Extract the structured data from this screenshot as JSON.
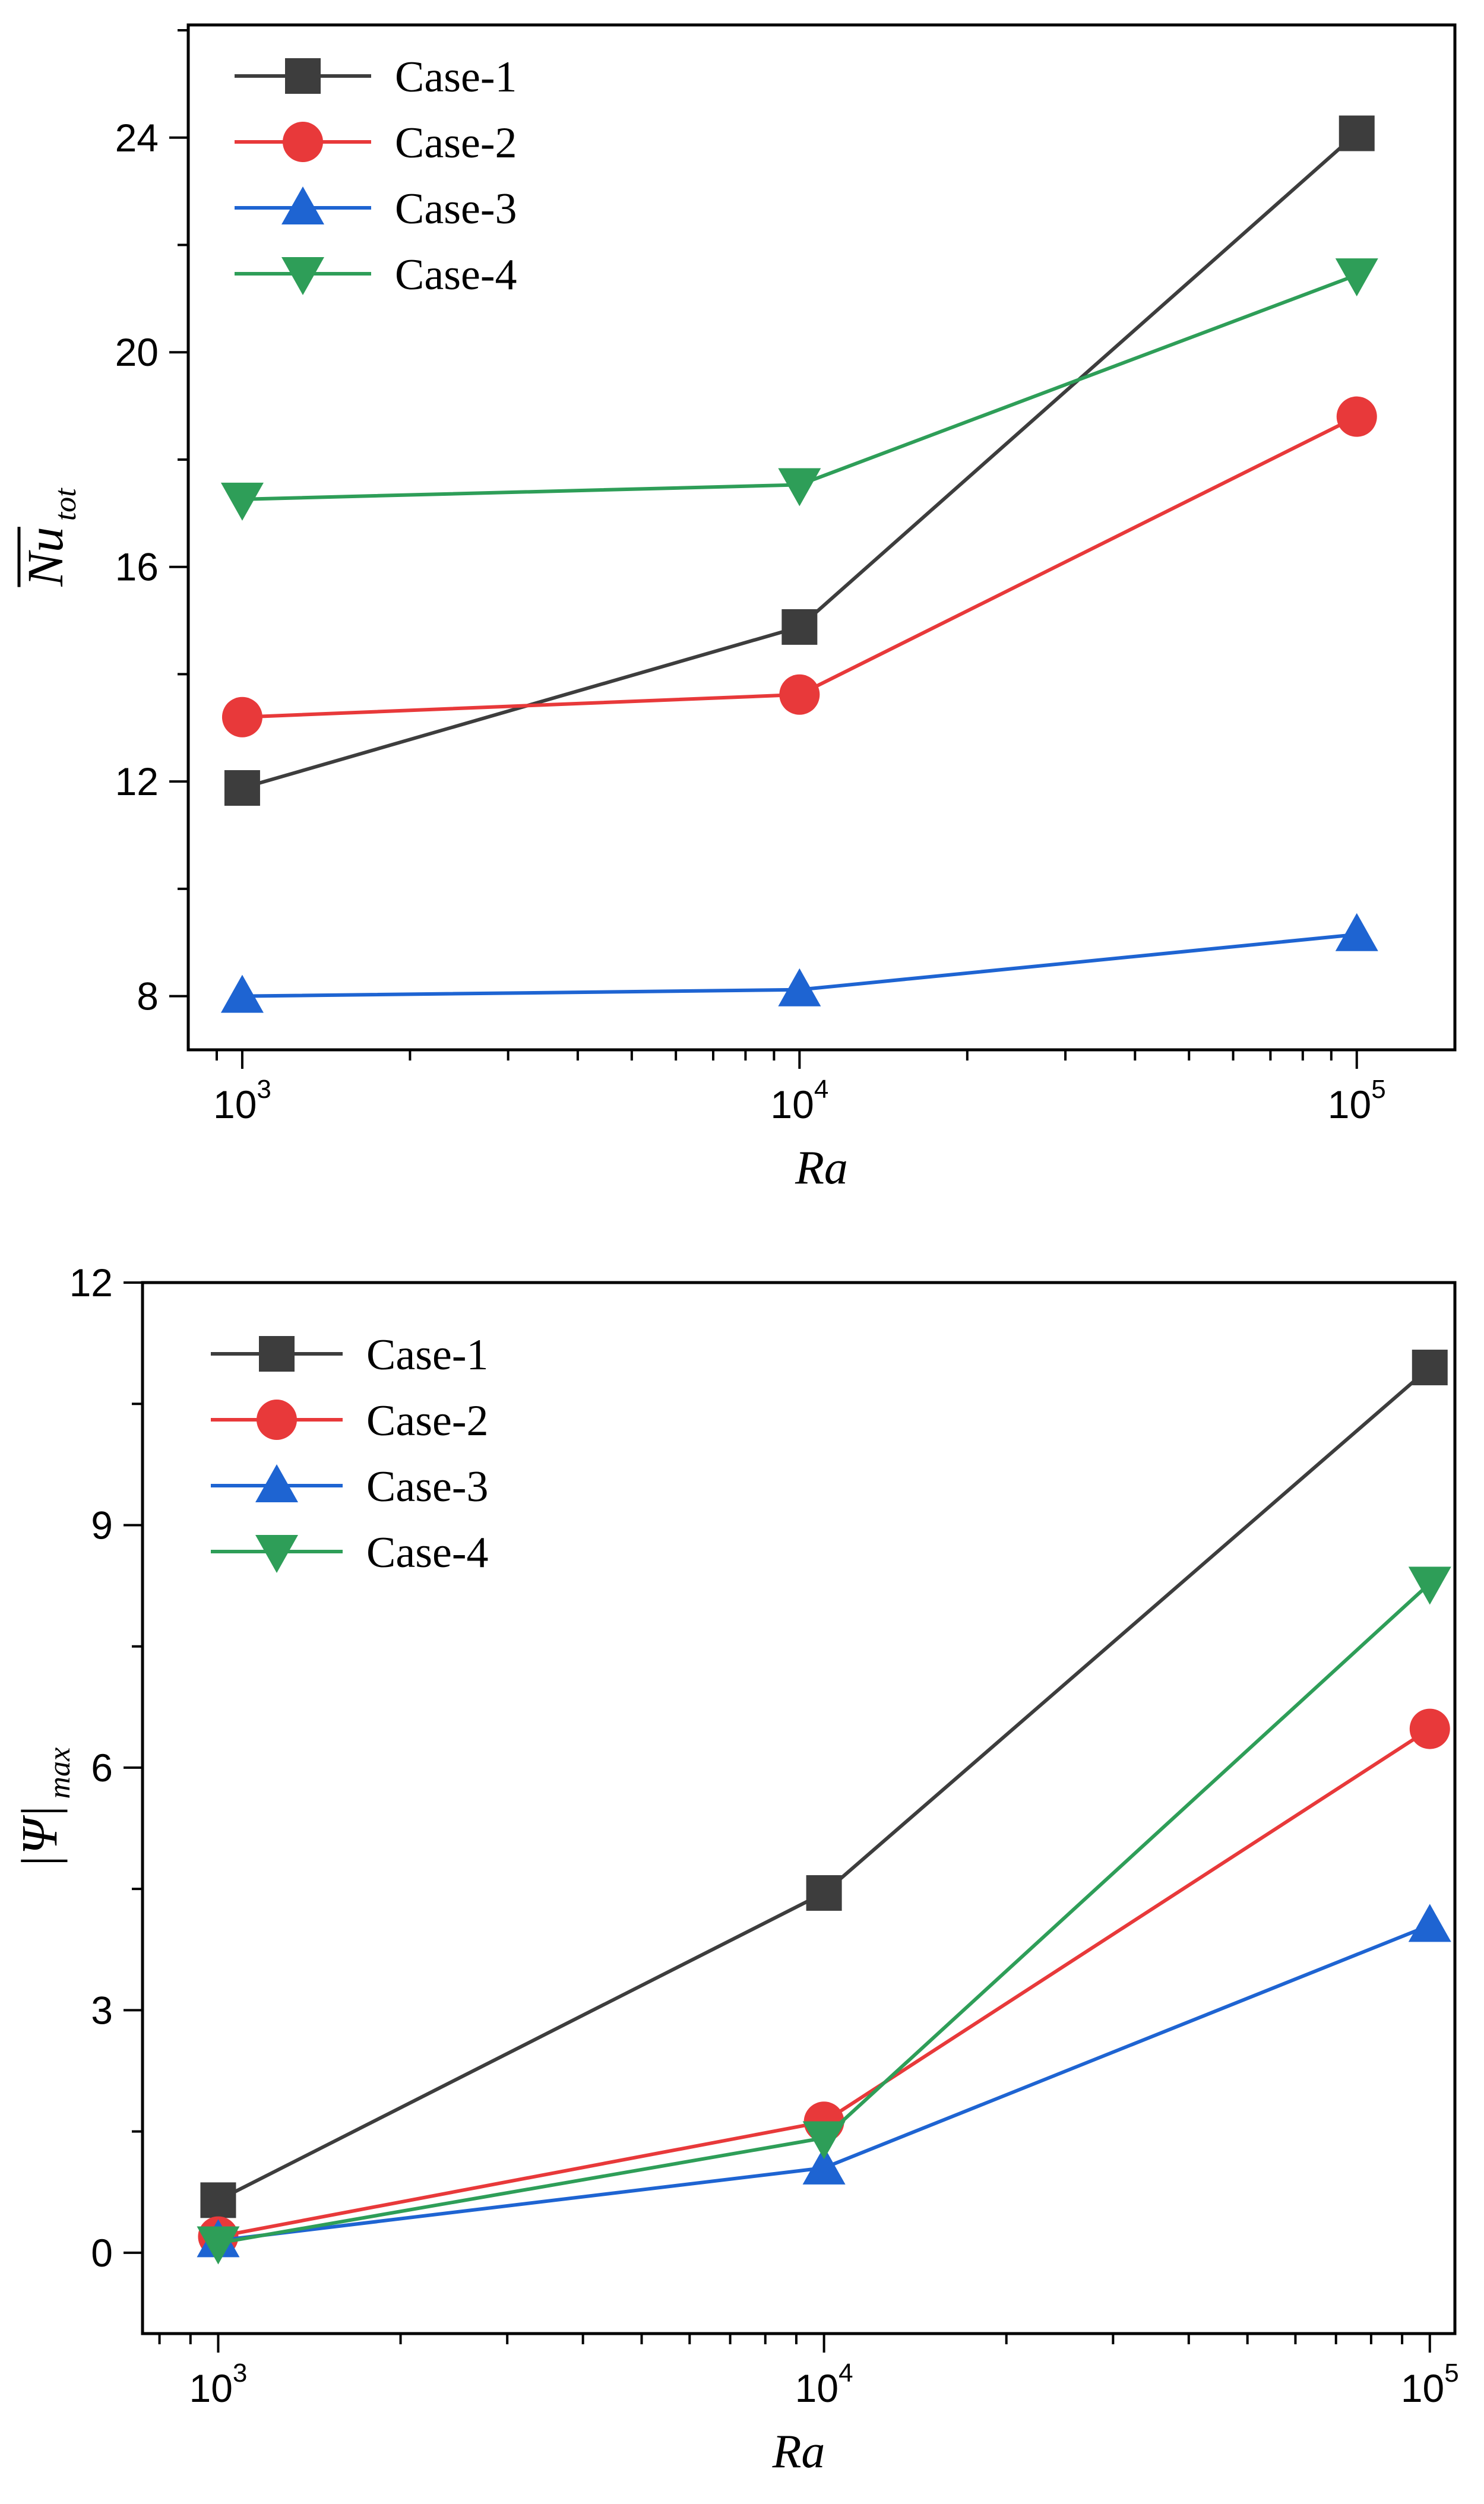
{
  "chart_data": [
    {
      "type": "line",
      "title": "",
      "xlabel": "Ra",
      "ylabel": "Nu",
      "ylabel_sub": "tot",
      "xscale": "log",
      "xlim": [
        800,
        150000
      ],
      "ylim": [
        7,
        26.1
      ],
      "x": [
        1000,
        10000,
        100000
      ],
      "xticks": [
        1000,
        10000,
        100000
      ],
      "xtick_labels": [
        {
          "base": "10",
          "exp": "3"
        },
        {
          "base": "10",
          "exp": "4"
        },
        {
          "base": "10",
          "exp": "5"
        }
      ],
      "yticks": [
        8,
        12,
        16,
        20,
        24
      ],
      "ytick_labels": [
        "8",
        "12",
        "16",
        "20",
        "24"
      ],
      "legend_position": "top-left",
      "series": [
        {
          "name": "Case-1",
          "color": "#3d3d3d",
          "marker": "square",
          "values": [
            11.88,
            14.88,
            24.08
          ]
        },
        {
          "name": "Case-2",
          "color": "#e8393a",
          "marker": "circle",
          "values": [
            13.2,
            13.62,
            18.8
          ]
        },
        {
          "name": "Case-3",
          "color": "#1e64d2",
          "marker": "triangle-up",
          "values": [
            8.0,
            8.12,
            9.15
          ]
        },
        {
          "name": "Case-4",
          "color": "#2e9e58",
          "marker": "triangle-down",
          "values": [
            17.26,
            17.53,
            21.44
          ]
        }
      ]
    },
    {
      "type": "line",
      "title": "",
      "xlabel": "Ra",
      "ylabel": "|Ψ|",
      "ylabel_sub": "max",
      "xscale": "log",
      "xlim": [
        750,
        110000
      ],
      "ylim": [
        -1,
        12
      ],
      "x": [
        1000,
        10000,
        100000
      ],
      "xticks": [
        1000,
        10000,
        100000
      ],
      "xtick_labels": [
        {
          "base": "10",
          "exp": "3"
        },
        {
          "base": "10",
          "exp": "4"
        },
        {
          "base": "10",
          "exp": "5"
        }
      ],
      "yticks": [
        0,
        3,
        6,
        9,
        12
      ],
      "ytick_labels": [
        "0",
        "3",
        "6",
        "9",
        "12"
      ],
      "legend_position": "top-left",
      "series": [
        {
          "name": "Case-1",
          "color": "#3d3d3d",
          "marker": "square",
          "values": [
            0.65,
            4.45,
            10.95
          ]
        },
        {
          "name": "Case-2",
          "color": "#e8393a",
          "marker": "circle",
          "values": [
            0.2,
            1.62,
            6.48
          ]
        },
        {
          "name": "Case-3",
          "color": "#1e64d2",
          "marker": "triangle-up",
          "values": [
            0.15,
            1.05,
            4.05
          ]
        },
        {
          "name": "Case-4",
          "color": "#2e9e58",
          "marker": "triangle-down",
          "values": [
            0.12,
            1.42,
            8.28
          ]
        }
      ]
    }
  ]
}
